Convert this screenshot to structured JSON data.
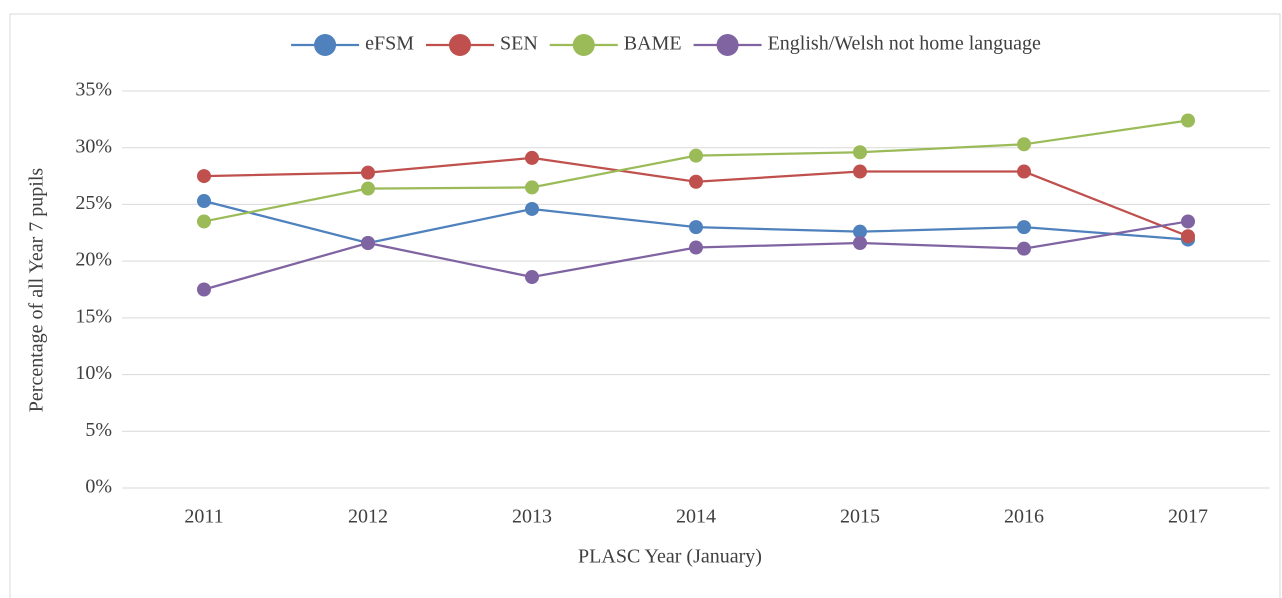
{
  "chart_data": {
    "type": "line",
    "x_label": "PLASC Year (January)",
    "y_label": "Percentage of all Year 7 pupils",
    "categories": [
      "2011",
      "2012",
      "2013",
      "2014",
      "2015",
      "2016",
      "2017"
    ],
    "series": [
      {
        "name": "eFSM",
        "color": "#4f81bd",
        "values": [
          25.3,
          21.6,
          24.6,
          23.0,
          22.6,
          23.0,
          21.9
        ]
      },
      {
        "name": "SEN",
        "color": "#c0504d",
        "values": [
          27.5,
          27.8,
          29.1,
          27.0,
          27.9,
          27.9,
          22.2
        ]
      },
      {
        "name": "BAME",
        "color": "#9bbb59",
        "values": [
          23.5,
          26.4,
          26.5,
          29.3,
          29.6,
          30.3,
          32.4
        ]
      },
      {
        "name": "English/Welsh not home language",
        "color": "#8064a2",
        "values": [
          17.5,
          21.6,
          18.6,
          21.2,
          21.6,
          21.1,
          23.5
        ]
      }
    ],
    "ylim": [
      0,
      35
    ],
    "yticks": [
      {
        "value": 0,
        "label": "0%"
      },
      {
        "value": 5,
        "label": "5%"
      },
      {
        "value": 10,
        "label": "10%"
      },
      {
        "value": 15,
        "label": "15%"
      },
      {
        "value": 20,
        "label": "20%"
      },
      {
        "value": 25,
        "label": "25%"
      },
      {
        "value": 30,
        "label": "30%"
      },
      {
        "value": 35,
        "label": "35%"
      }
    ],
    "grid": true,
    "legend": "top"
  }
}
